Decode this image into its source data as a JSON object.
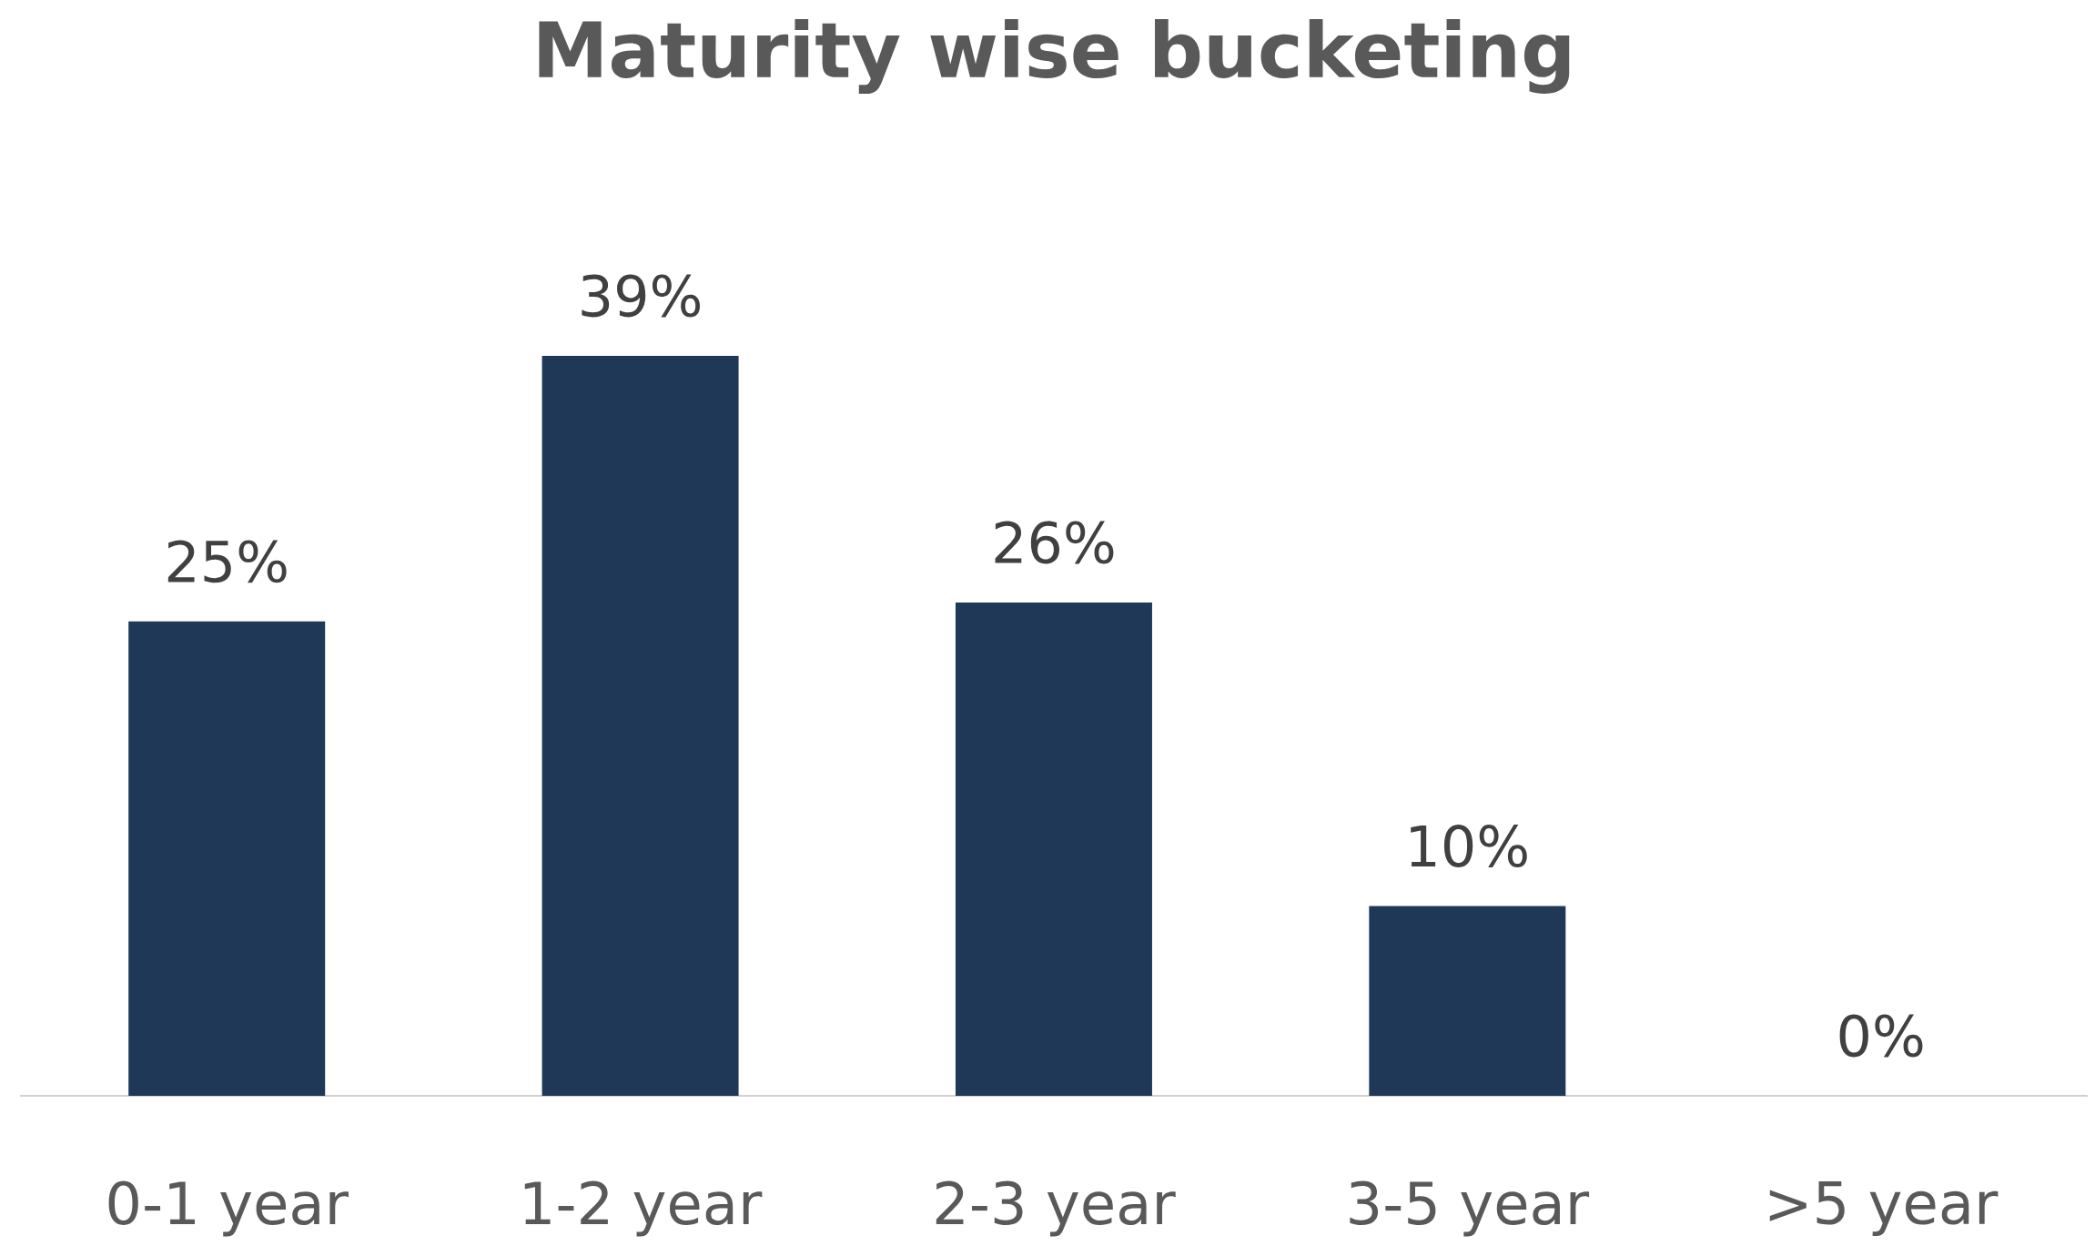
{
  "chart_data": {
    "type": "bar",
    "title": "Maturity wise bucketing",
    "categories": [
      "0-1 year",
      "1-2 year",
      "2-3 year",
      "3-5 year",
      ">5 year"
    ],
    "values": [
      25,
      39,
      26,
      10,
      0
    ],
    "value_labels": [
      "25%",
      "39%",
      "26%",
      "10%",
      "0%"
    ],
    "color": "#1f3857"
  }
}
